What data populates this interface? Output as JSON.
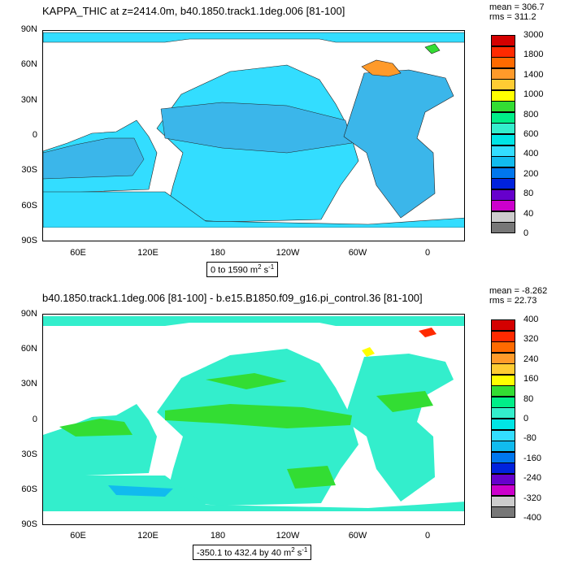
{
  "panel_top": {
    "title": "KAPPA_THIC at z=2414.0m, b40.1850.track1.1deg.006 [81-100]",
    "mean_label": "mean = 306.7",
    "rms_label": "rms = 311.2",
    "range_label_text": "0 to 1590 m",
    "units_sup": "2",
    "units_tail": " s",
    "units_exp": "-1",
    "lat_labels": [
      "90N",
      "60N",
      "30N",
      "0",
      "30S",
      "60S",
      "90S"
    ],
    "lon_labels": [
      "60E",
      "120E",
      "180",
      "120W",
      "60W",
      "0"
    ],
    "legend_labels": [
      "3000",
      "1800",
      "1400",
      "1000",
      "800",
      "600",
      "400",
      "200",
      "80",
      "40",
      "0"
    ],
    "legend_colors": [
      "#d40000",
      "#ff2a00",
      "#ff6a00",
      "#ff9a2a",
      "#ffcc33",
      "#ffff00",
      "#33dd33",
      "#00ee88",
      "#33eecc",
      "#00e5e5",
      "#33ddff",
      "#11bbee",
      "#0077ee",
      "#0022dd",
      "#6600cc",
      "#cc00cc",
      "#cccccc",
      "#777777"
    ],
    "ocean_color": "#33ddff",
    "deep_color": "#3bb6ea"
  },
  "panel_bottom": {
    "title": "b40.1850.track1.1deg.006 [81-100] - b.e15.B1850.f09_g16.pi_control.36 [81-100]",
    "mean_label": "mean = -8.262",
    "rms_label": "rms = 22.73",
    "range_label_text": "-350.1 to 432.4 by 40 m",
    "units_sup": "2",
    "units_tail": " s",
    "units_exp": "-1",
    "lat_labels": [
      "90N",
      "60N",
      "30N",
      "0",
      "30S",
      "60S",
      "90S"
    ],
    "lon_labels": [
      "60E",
      "120E",
      "180",
      "120W",
      "60W",
      "0"
    ],
    "legend_labels": [
      "400",
      "320",
      "240",
      "160",
      "80",
      "0",
      "-80",
      "-160",
      "-240",
      "-320",
      "-400"
    ],
    "legend_colors": [
      "#d40000",
      "#ff2a00",
      "#ff6a00",
      "#ff9a2a",
      "#ffcc33",
      "#ffff00",
      "#33dd33",
      "#00ee88",
      "#33eecc",
      "#00e5e5",
      "#33ddff",
      "#11bbee",
      "#0077ee",
      "#0022dd",
      "#6600cc",
      "#cc00cc",
      "#cccccc",
      "#777777"
    ],
    "ocean_color": "#33eecc",
    "band_color": "#33dd33"
  }
}
